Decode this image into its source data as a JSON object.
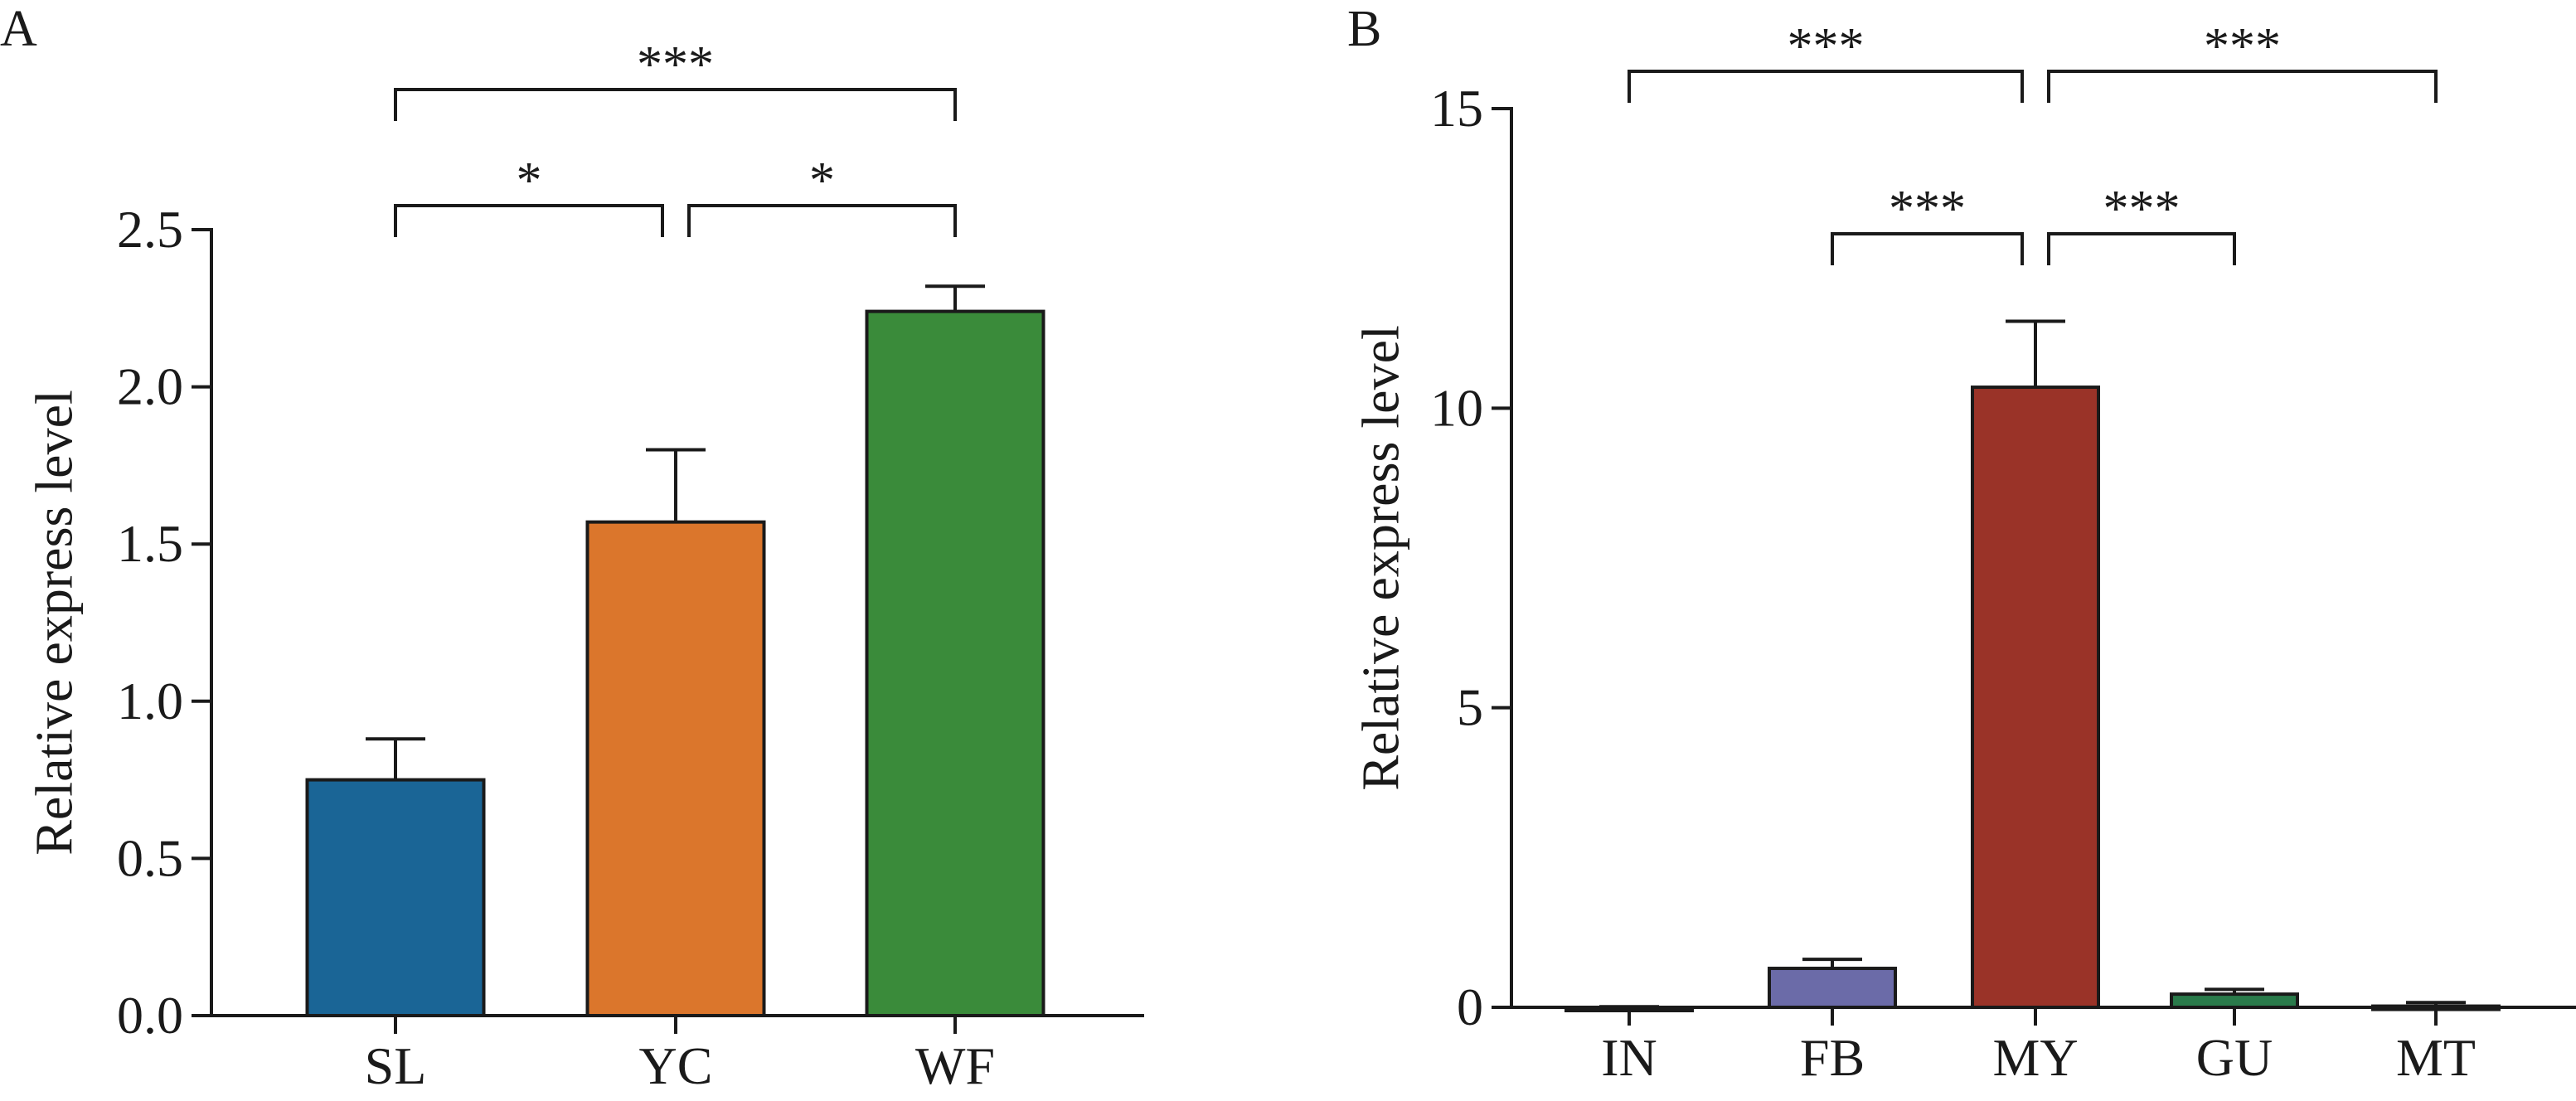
{
  "chart_data": [
    {
      "type": "bar",
      "panel_label": "A",
      "categories": [
        "SL",
        "YC",
        "WF"
      ],
      "values": [
        0.75,
        1.57,
        2.24
      ],
      "errors": [
        0.13,
        0.23,
        0.08
      ],
      "colors": [
        "#1a6596",
        "#db762c",
        "#3a8b3a"
      ],
      "ylabel": "Relative express level",
      "ylim": [
        0,
        2.5
      ],
      "yticks": [
        "0.0",
        "0.5",
        "1.0",
        "1.5",
        "2.0",
        "2.5"
      ],
      "grid": false,
      "significance": [
        {
          "from": 0,
          "to": 1,
          "label": "*",
          "level": 1
        },
        {
          "from": 1,
          "to": 2,
          "label": "*",
          "level": 1
        },
        {
          "from": 0,
          "to": 2,
          "label": "***",
          "level": 2
        }
      ]
    },
    {
      "type": "bar",
      "panel_label": "B",
      "categories": [
        "IN",
        "FB",
        "MY",
        "GU",
        "MT"
      ],
      "values": [
        -0.05,
        0.65,
        10.35,
        0.22,
        0.02
      ],
      "errors": [
        0.06,
        0.15,
        1.1,
        0.08,
        0.06
      ],
      "colors": [
        "#222222",
        "#6b6ba8",
        "#9a3328",
        "#2a7b4b",
        "#333333"
      ],
      "ylabel": "Relative express level",
      "ylim": [
        0,
        15
      ],
      "yticks": [
        "0",
        "5",
        "10",
        "15"
      ],
      "grid": false,
      "significance": [
        {
          "from": 1,
          "to": 2,
          "label": "***",
          "level": 1
        },
        {
          "from": 2,
          "to": 3,
          "label": "***",
          "level": 1
        },
        {
          "from": 0,
          "to": 2,
          "label": "***",
          "level": 2
        },
        {
          "from": 2,
          "to": 4,
          "label": "***",
          "level": 2
        }
      ]
    }
  ]
}
